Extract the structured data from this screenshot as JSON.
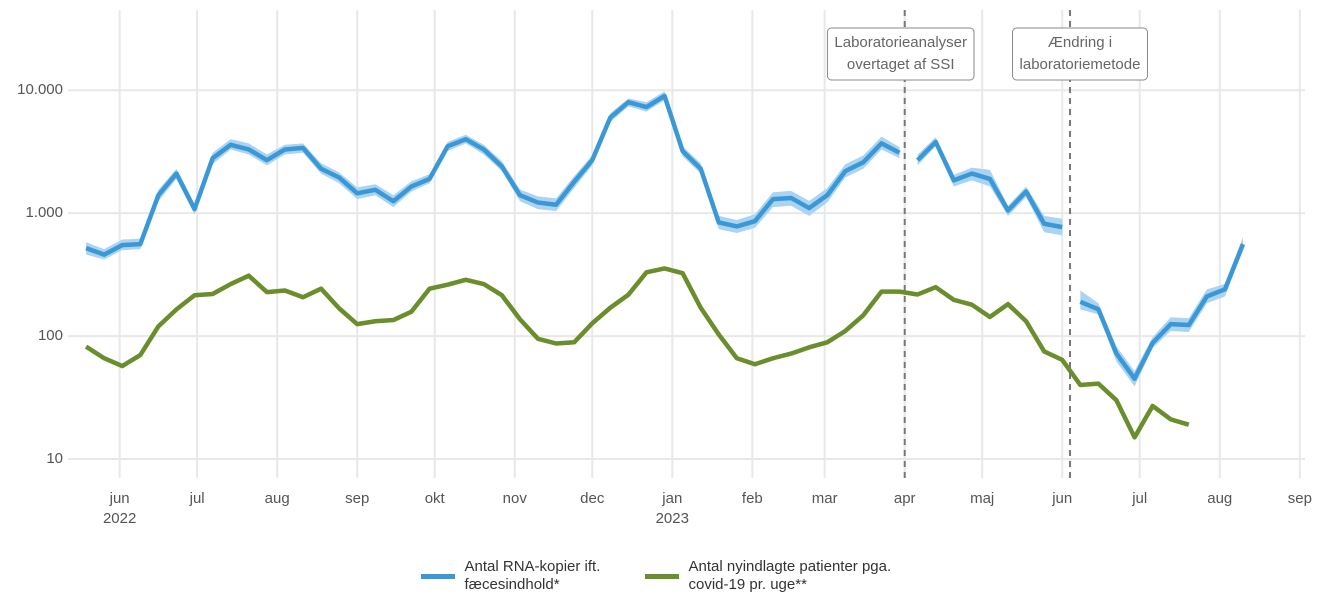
{
  "chart_data": {
    "type": "line",
    "log_y": true,
    "grid": true,
    "legend": "bottom",
    "xlim": [
      "2022-05-12",
      "2023-09-03"
    ],
    "xticks": [
      {
        "value": "2022-06-01",
        "label": "jun"
      },
      {
        "value": "2022-07-01",
        "label": "jul"
      },
      {
        "value": "2022-08-01",
        "label": "aug"
      },
      {
        "value": "2022-09-01",
        "label": "sep"
      },
      {
        "value": "2022-10-01",
        "label": "okt"
      },
      {
        "value": "2022-11-01",
        "label": "nov"
      },
      {
        "value": "2022-12-01",
        "label": "dec"
      },
      {
        "value": "2023-01-01",
        "label": "jan"
      },
      {
        "value": "2023-02-01",
        "label": "feb"
      },
      {
        "value": "2023-03-01",
        "label": "mar"
      },
      {
        "value": "2023-04-01",
        "label": "apr"
      },
      {
        "value": "2023-05-01",
        "label": "maj"
      },
      {
        "value": "2023-06-01",
        "label": "jun"
      },
      {
        "value": "2023-07-01",
        "label": "jul"
      },
      {
        "value": "2023-08-01",
        "label": "aug"
      },
      {
        "value": "2023-09-01",
        "label": "sep"
      }
    ],
    "xtick_years": [
      {
        "value": "2022-06-01",
        "label": "2022"
      },
      {
        "value": "2023-01-01",
        "label": "2023"
      }
    ],
    "ylim": [
      7,
      45000
    ],
    "yticks": [
      10,
      100,
      {
        "value": 1000,
        "label": "1.000"
      },
      {
        "value": 10000,
        "label": "10.000"
      }
    ],
    "x": [
      "2022-05-19",
      "2022-05-26",
      "2022-06-02",
      "2022-06-09",
      "2022-06-16",
      "2022-06-23",
      "2022-06-30",
      "2022-07-07",
      "2022-07-14",
      "2022-07-21",
      "2022-07-28",
      "2022-08-04",
      "2022-08-11",
      "2022-08-18",
      "2022-08-25",
      "2022-09-01",
      "2022-09-08",
      "2022-09-15",
      "2022-09-22",
      "2022-09-29",
      "2022-10-06",
      "2022-10-13",
      "2022-10-20",
      "2022-10-27",
      "2022-11-03",
      "2022-11-10",
      "2022-11-17",
      "2022-11-24",
      "2022-12-01",
      "2022-12-08",
      "2022-12-15",
      "2022-12-22",
      "2022-12-29",
      "2023-01-05",
      "2023-01-12",
      "2023-01-19",
      "2023-01-26",
      "2023-02-02",
      "2023-02-09",
      "2023-02-16",
      "2023-02-23",
      "2023-03-02",
      "2023-03-09",
      "2023-03-16",
      "2023-03-23",
      "2023-03-30",
      "2023-04-06",
      "2023-04-13",
      "2023-04-20",
      "2023-04-27",
      "2023-05-04",
      "2023-05-11",
      "2023-05-18",
      "2023-05-25",
      "2023-06-01",
      "2023-06-08",
      "2023-06-15",
      "2023-06-22",
      "2023-06-29",
      "2023-07-06",
      "2023-07-13",
      "2023-07-20",
      "2023-07-27",
      "2023-08-03",
      "2023-08-10"
    ],
    "series": [
      {
        "name": "Antal RNA-kopier ift. fæcesindhold*",
        "color": "#3b98d6",
        "band_color": "#aad4f1",
        "break_at_vlines": true,
        "values": [
          520,
          460,
          550,
          560,
          1400,
          2100,
          1080,
          2800,
          3600,
          3300,
          2700,
          3300,
          3400,
          2300,
          1950,
          1450,
          1550,
          1250,
          1650,
          1900,
          3500,
          4000,
          3300,
          2400,
          1400,
          1220,
          1170,
          1800,
          2700,
          6000,
          8000,
          7300,
          9000,
          3200,
          2300,
          840,
          780,
          860,
          1300,
          1330,
          1100,
          1400,
          2200,
          2600,
          3700,
          3100,
          2700,
          3800,
          1850,
          2100,
          1900,
          1050,
          1500,
          820,
          770,
          190,
          165,
          72,
          45,
          88,
          125,
          123,
          210,
          240,
          560
        ],
        "lower": [
          460,
          420,
          500,
          510,
          1250,
          1900,
          980,
          2500,
          3300,
          3000,
          2450,
          3000,
          3100,
          2100,
          1750,
          1300,
          1400,
          1120,
          1500,
          1750,
          3200,
          3700,
          3000,
          2200,
          1250,
          1080,
          1040,
          1600,
          2450,
          5500,
          7400,
          6700,
          8300,
          2900,
          2100,
          740,
          690,
          760,
          1120,
          1150,
          950,
          1220,
          1950,
          2300,
          3300,
          2800,
          2450,
          3500,
          1650,
          1850,
          1650,
          950,
          1350,
          700,
          660,
          165,
          150,
          62,
          39,
          80,
          110,
          108,
          185,
          210,
          500
        ],
        "upper": [
          580,
          510,
          610,
          620,
          1550,
          2300,
          1180,
          3100,
          4000,
          3700,
          3000,
          3600,
          3700,
          2550,
          2150,
          1620,
          1720,
          1400,
          1820,
          2080,
          3800,
          4350,
          3600,
          2650,
          1560,
          1370,
          1320,
          2000,
          2950,
          6500,
          8600,
          8000,
          9800,
          3500,
          2550,
          950,
          880,
          980,
          1480,
          1520,
          1260,
          1600,
          2500,
          2950,
          4200,
          3450,
          3000,
          4150,
          2050,
          2350,
          2250,
          1150,
          1650,
          950,
          900,
          235,
          185,
          82,
          52,
          98,
          142,
          140,
          240,
          265,
          640
        ]
      },
      {
        "name": "Antal nyindlagte patienter pga. covid-19 pr. uge**",
        "color": "#6a8e2b",
        "values": [
          82,
          66,
          57,
          70,
          120,
          165,
          215,
          220,
          265,
          310,
          228,
          235,
          207,
          243,
          168,
          125,
          132,
          135,
          158,
          243,
          262,
          287,
          265,
          215,
          137,
          95,
          87,
          89,
          127,
          170,
          217,
          330,
          355,
          325,
          170,
          103,
          66,
          59,
          66,
          72,
          81,
          89,
          110,
          148,
          230,
          230,
          218,
          250,
          197,
          180,
          143,
          182,
          132,
          75,
          64,
          40,
          41,
          30,
          15,
          27,
          21,
          19,
          null,
          null,
          null
        ]
      }
    ],
    "vlines": [
      {
        "x": "2023-04-01",
        "label": [
          "Laboratorieanalyser",
          "overtaget af SSI"
        ]
      },
      {
        "x": "2023-06-04",
        "label": [
          "Ændring i",
          "laboratoriemetode"
        ]
      }
    ]
  }
}
